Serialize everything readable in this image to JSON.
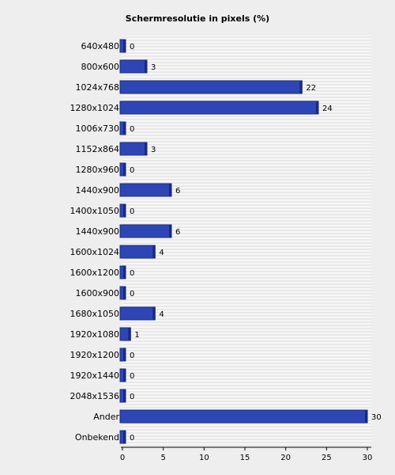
{
  "chart_data": {
    "type": "bar",
    "orientation": "horizontal",
    "title": "Schermresolutie in pixels (%)",
    "xlabel": "",
    "ylabel": "",
    "categories": [
      "640x480",
      "800x600",
      "1024x768",
      "1280x1024",
      "1006x730",
      "1152x864",
      "1280x960",
      "1440x900",
      "1400x1050",
      "1440x900",
      "1600x1024",
      "1600x1200",
      "1600x900",
      "1680x1050",
      "1920x1080",
      "1920x1200",
      "1920x1440",
      "2048x1536",
      "Ander",
      "Onbekend"
    ],
    "values": [
      0,
      3,
      22,
      24,
      0,
      3,
      0,
      6,
      0,
      6,
      4,
      0,
      0,
      4,
      1,
      0,
      0,
      0,
      30,
      0
    ],
    "xlim": [
      0,
      30
    ],
    "xticks": [
      0,
      5,
      10,
      15,
      20,
      25,
      30
    ],
    "grid": true,
    "legend": "none",
    "colors": {
      "bar": "#2e46b5",
      "bar_edge": "#1a2a80",
      "grid": "#d9d9d9",
      "plot_bg": "#f7f7f7"
    }
  }
}
